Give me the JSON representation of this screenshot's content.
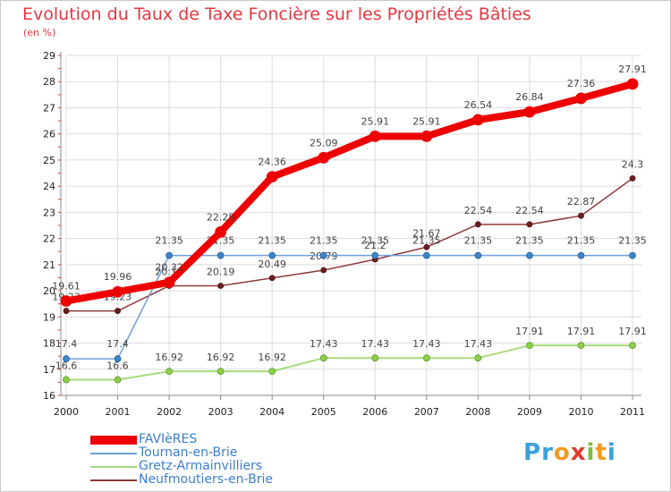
{
  "chart_data": {
    "type": "line",
    "title": "Evolution du Taux de Taxe Foncière sur les Propriétés Bâties",
    "unit_label": "(en %)",
    "x": [
      "2000",
      "2001",
      "2002",
      "2003",
      "2004",
      "2005",
      "2006",
      "2007",
      "2008",
      "2009",
      "2010",
      "2011"
    ],
    "y_ticks": [
      "16",
      "17",
      "18",
      "19",
      "20",
      "21",
      "22",
      "23",
      "24",
      "25",
      "26",
      "27",
      "28",
      "29"
    ],
    "ylim": [
      16,
      29
    ],
    "grid": true,
    "legend_position": "bottom-left",
    "series": [
      {
        "name": "FAVIèRES",
        "color": "#ee0000",
        "values": [
          19.61,
          19.96,
          20.32,
          22.25,
          24.36,
          25.09,
          25.91,
          25.91,
          26.54,
          26.84,
          27.36,
          27.91
        ],
        "labels": [
          "19.61",
          "19.96",
          "20.32",
          "22.25",
          "24.36",
          "25.09",
          "25.91",
          "25.91",
          "26.54",
          "26.84",
          "27.36",
          "27.91"
        ]
      },
      {
        "name": "Tournan-en-Brie",
        "color": "#6f9fd8",
        "values": [
          17.4,
          17.4,
          21.35,
          21.35,
          21.35,
          21.35,
          21.35,
          21.35,
          21.35,
          21.35,
          21.35,
          21.35
        ],
        "labels": [
          "17.4",
          "17.4",
          "21.35",
          "21.35",
          "21.35",
          "21.35",
          "21.35",
          "21.35",
          "21.35",
          "21.35",
          "21.35",
          "21.35"
        ]
      },
      {
        "name": "Gretz-Armainvilliers",
        "color": "#a6db7c",
        "values": [
          16.6,
          16.6,
          16.92,
          16.92,
          16.92,
          17.43,
          17.43,
          17.43,
          17.43,
          17.91,
          17.91,
          17.91
        ],
        "labels": [
          "16.6",
          "16.6",
          "16.92",
          "16.92",
          "16.92",
          "17.43",
          "17.43",
          "17.43",
          "17.43",
          "17.91",
          "17.91",
          "17.91"
        ]
      },
      {
        "name": "Neufmoutiers-en-Brie",
        "color": "#8e3a3a",
        "values": [
          19.23,
          19.23,
          20.19,
          20.19,
          20.49,
          20.79,
          21.2,
          21.67,
          22.54,
          22.54,
          22.87,
          24.3
        ],
        "labels": [
          "19.23",
          "19.23",
          "20.19",
          "20.19",
          "20.49",
          "20.79",
          "21.2",
          "21.67",
          "22.54",
          "22.54",
          "22.87",
          "24.3"
        ]
      }
    ]
  },
  "logo": {
    "letters": [
      {
        "ch": "P",
        "color": "#3aa0d8"
      },
      {
        "ch": "r",
        "color": "#3aa0d8"
      },
      {
        "ch": "o",
        "color": "#f39a1c"
      },
      {
        "ch": "x",
        "color": "#e23b2e"
      },
      {
        "ch": "i",
        "color": "#7cbf3a"
      },
      {
        "ch": "t",
        "color": "#f39a1c"
      },
      {
        "ch": "i",
        "color": "#3aa0d8"
      }
    ]
  }
}
